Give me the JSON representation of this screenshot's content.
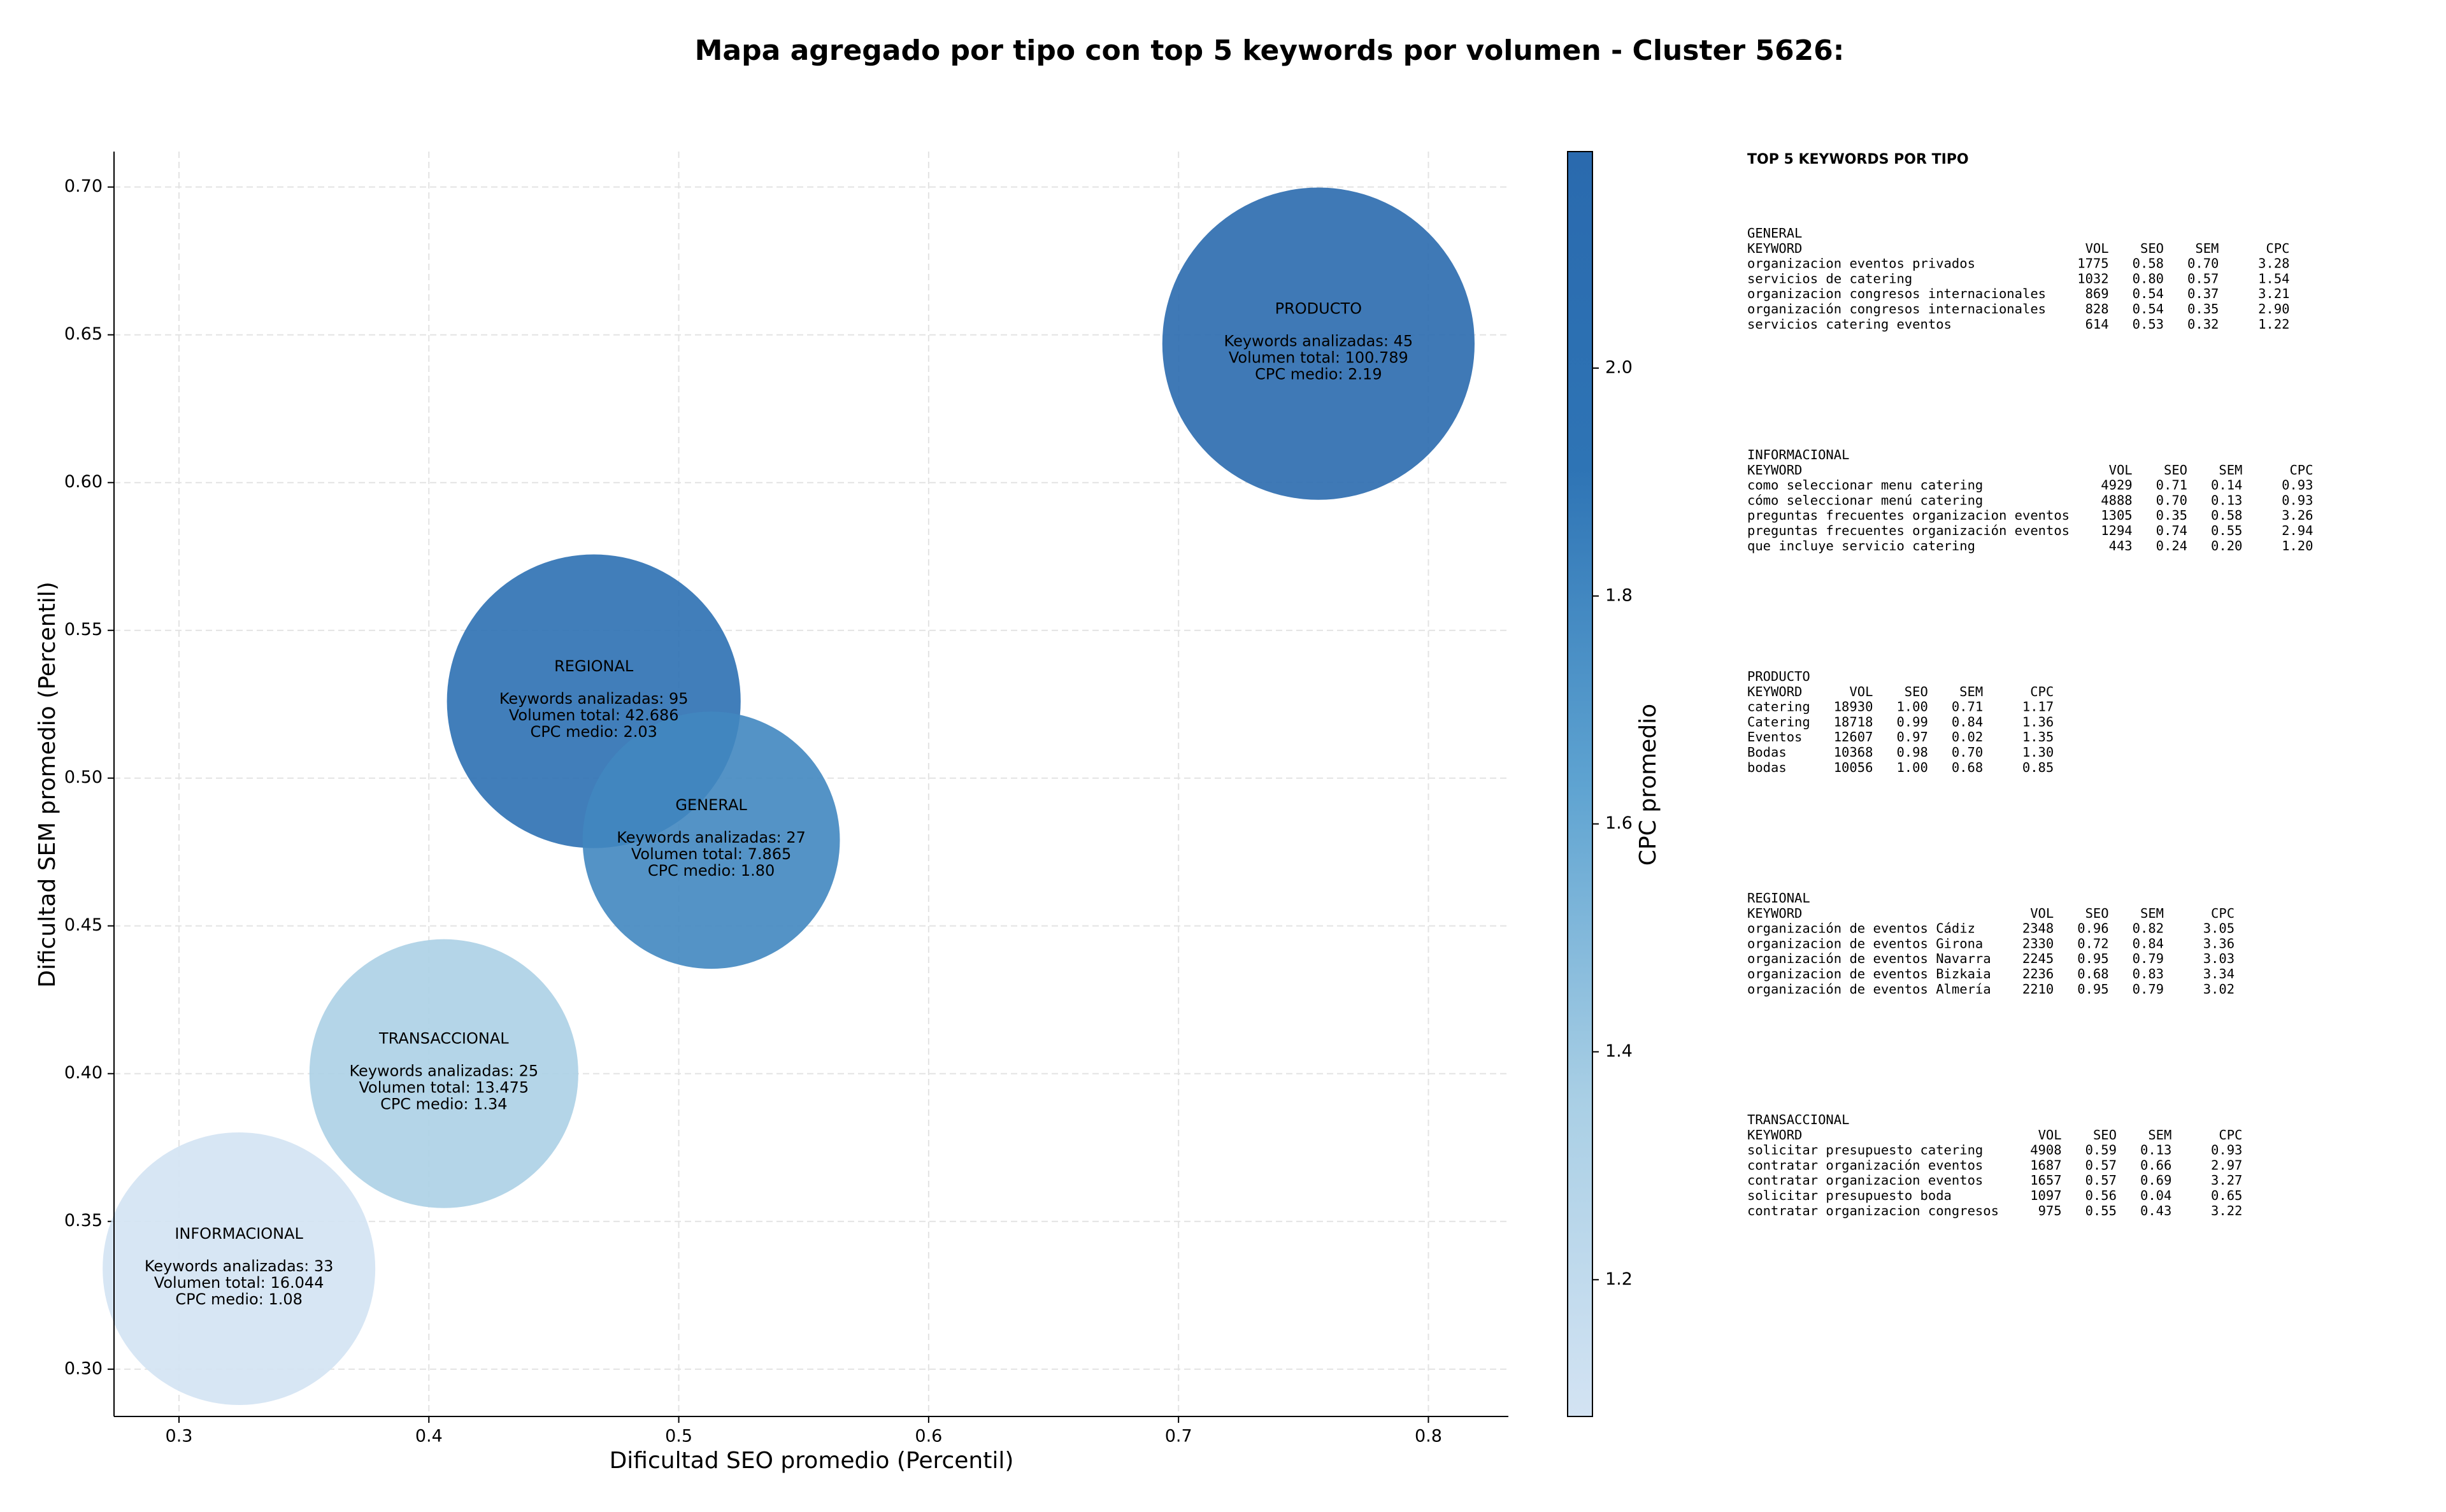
{
  "chart_data": {
    "type": "scatter",
    "title": "Mapa agregado por tipo con top 5 keywords por volumen - Cluster 5626:",
    "xlabel": "Dificultad SEO promedio (Percentil)",
    "ylabel": "Dificultad SEM promedio (Percentil)",
    "x": [
      0.756,
      0.466,
      0.513,
      0.406,
      0.324
    ],
    "values": [
      0.647,
      0.526,
      0.479,
      0.4,
      0.334
    ],
    "sizes": [
      100789,
      42686,
      7865,
      13475,
      16044
    ],
    "cpc": [
      2.19,
      2.03,
      1.8,
      1.34,
      1.08
    ],
    "bubble_labels": [
      [
        "PRODUCTO",
        "Keywords analizadas: 45",
        "Volumen total: 100.789",
        "CPC medio: 2.19"
      ],
      [
        "REGIONAL",
        "Keywords analizadas: 95",
        "Volumen total: 42.686",
        "CPC medio: 2.03"
      ],
      [
        "GENERAL",
        "Keywords analizadas: 27",
        "Volumen total: 7.865",
        "CPC medio: 1.80"
      ],
      [
        "TRANSACCIONAL",
        "Keywords analizadas: 25",
        "Volumen total: 13.475",
        "CPC medio: 1.34"
      ],
      [
        "INFORMACIONAL",
        "Keywords analizadas: 33",
        "Volumen total: 16.044",
        "CPC medio: 1.08"
      ]
    ],
    "xlim": [
      0.274,
      0.832
    ],
    "xticks": [
      0.3,
      0.4,
      0.5,
      0.6,
      0.7,
      0.8
    ],
    "ylim": [
      0.284,
      0.712
    ],
    "yticks": [
      {
        "value": 0.3,
        "label": "0.30"
      },
      0.35,
      {
        "value": 0.4,
        "label": "0.40"
      },
      0.45,
      {
        "value": 0.5,
        "label": "0.50"
      },
      0.55,
      {
        "value": 0.6,
        "label": "0.60"
      },
      0.65,
      {
        "value": 0.7,
        "label": "0.70"
      }
    ],
    "grid": true,
    "colormap": [
      "#d3e3f3",
      "#a9cfe5",
      "#5ea3d1",
      "#2e74b5",
      "#2a6aae"
    ],
    "colorbar": {
      "label": "CPC promedio",
      "lim": [
        1.08,
        2.19
      ],
      "ticks": [
        1.2,
        1.4,
        1.6,
        1.8,
        {
          "value": 2.0,
          "label": "2.0"
        }
      ]
    }
  },
  "keyword_panel": {
    "title": "TOP 5 KEYWORDS POR TIPO",
    "columns": [
      "KEYWORD",
      "VOL",
      "SEO",
      "SEM",
      "CPC"
    ],
    "sections": [
      {
        "name": "GENERAL",
        "rows": [
          [
            "organizacion eventos privados",
            "1775",
            "0.58",
            "0.70",
            "3.28"
          ],
          [
            "servicios de catering",
            "1032",
            "0.80",
            "0.57",
            "1.54"
          ],
          [
            "organizacion congresos internacionales",
            "869",
            "0.54",
            "0.37",
            "3.21"
          ],
          [
            "organización congresos internacionales",
            "828",
            "0.54",
            "0.35",
            "2.90"
          ],
          [
            "servicios catering eventos",
            "614",
            "0.53",
            "0.32",
            "1.22"
          ]
        ]
      },
      {
        "name": "INFORMACIONAL",
        "rows": [
          [
            "como seleccionar menu catering",
            "4929",
            "0.71",
            "0.14",
            "0.93"
          ],
          [
            "cómo seleccionar menú catering",
            "4888",
            "0.70",
            "0.13",
            "0.93"
          ],
          [
            "preguntas frecuentes organizacion eventos",
            "1305",
            "0.35",
            "0.58",
            "3.26"
          ],
          [
            "preguntas frecuentes organización eventos",
            "1294",
            "0.74",
            "0.55",
            "2.94"
          ],
          [
            "que incluye servicio catering",
            "443",
            "0.24",
            "0.20",
            "1.20"
          ]
        ]
      },
      {
        "name": "PRODUCTO",
        "rows": [
          [
            "catering",
            "18930",
            "1.00",
            "0.71",
            "1.17"
          ],
          [
            "Catering",
            "18718",
            "0.99",
            "0.84",
            "1.36"
          ],
          [
            "Eventos",
            "12607",
            "0.97",
            "0.02",
            "1.35"
          ],
          [
            "Bodas",
            "10368",
            "0.98",
            "0.70",
            "1.30"
          ],
          [
            "bodas",
            "10056",
            "1.00",
            "0.68",
            "0.85"
          ]
        ]
      },
      {
        "name": "REGIONAL",
        "rows": [
          [
            "organización de eventos Cádiz",
            "2348",
            "0.96",
            "0.82",
            "3.05"
          ],
          [
            "organizacion de eventos Girona",
            "2330",
            "0.72",
            "0.84",
            "3.36"
          ],
          [
            "organización de eventos Navarra",
            "2245",
            "0.95",
            "0.79",
            "3.03"
          ],
          [
            "organizacion de eventos Bizkaia",
            "2236",
            "0.68",
            "0.83",
            "3.34"
          ],
          [
            "organización de eventos Almería",
            "2210",
            "0.95",
            "0.79",
            "3.02"
          ]
        ]
      },
      {
        "name": "TRANSACCIONAL",
        "rows": [
          [
            "solicitar presupuesto catering",
            "4908",
            "0.59",
            "0.13",
            "0.93"
          ],
          [
            "contratar organización eventos",
            "1687",
            "0.57",
            "0.66",
            "2.97"
          ],
          [
            "contratar organizacion eventos",
            "1657",
            "0.57",
            "0.69",
            "3.27"
          ],
          [
            "solicitar presupuesto boda",
            "1097",
            "0.56",
            "0.04",
            "0.65"
          ],
          [
            "contratar organizacion congresos",
            "975",
            "0.55",
            "0.43",
            "3.22"
          ]
        ]
      }
    ]
  }
}
